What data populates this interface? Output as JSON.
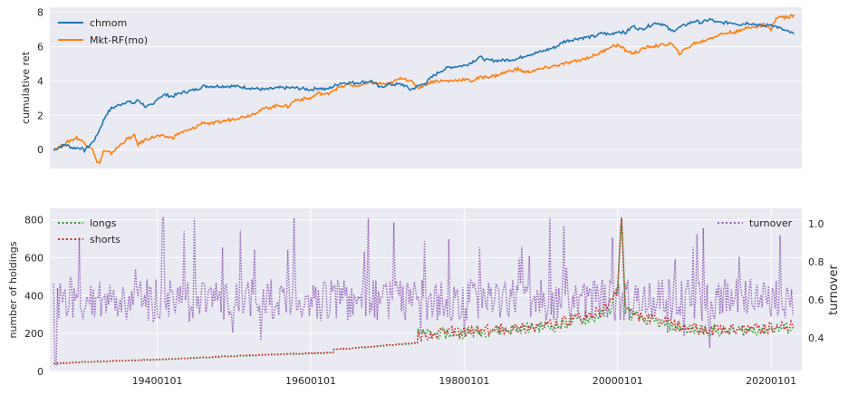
{
  "chart_data": [
    {
      "type": "line",
      "title": "",
      "xlabel": "",
      "ylabel": "cumulative ret",
      "xlim": [
        1926,
        2024
      ],
      "ylim": [
        -1.1,
        8.3
      ],
      "yticks": [
        0,
        2,
        4,
        6,
        8
      ],
      "xticks": [],
      "grid": true,
      "legend": "top-left",
      "series": [
        {
          "name": "chmom",
          "color": "#1f77b4",
          "points": [
            [
              1926.5,
              0.0
            ],
            [
              1928,
              0.3
            ],
            [
              1929,
              0.1
            ],
            [
              1930,
              0.1
            ],
            [
              1930.5,
              -0.05
            ],
            [
              1931.5,
              0.4
            ],
            [
              1932,
              0.7
            ],
            [
              1932.5,
              1.2
            ],
            [
              1933.3,
              2.0
            ],
            [
              1934,
              2.4
            ],
            [
              1935,
              2.6
            ],
            [
              1936,
              2.8
            ],
            [
              1937,
              2.7
            ],
            [
              1937.5,
              2.9
            ],
            [
              1938.5,
              2.5
            ],
            [
              1939.5,
              2.6
            ],
            [
              1940,
              3.0
            ],
            [
              1941,
              3.2
            ],
            [
              1942,
              3.1
            ],
            [
              1943,
              3.3
            ],
            [
              1944,
              3.4
            ],
            [
              1945,
              3.5
            ],
            [
              1946,
              3.7
            ],
            [
              1948,
              3.7
            ],
            [
              1950,
              3.7
            ],
            [
              1952,
              3.6
            ],
            [
              1954,
              3.5
            ],
            [
              1956,
              3.6
            ],
            [
              1958,
              3.6
            ],
            [
              1960,
              3.5
            ],
            [
              1961,
              3.6
            ],
            [
              1962,
              3.5
            ],
            [
              1963,
              3.7
            ],
            [
              1964,
              3.9
            ],
            [
              1966,
              3.9
            ],
            [
              1968,
              4.0
            ],
            [
              1969,
              3.6
            ],
            [
              1970,
              3.8
            ],
            [
              1972,
              3.8
            ],
            [
              1973,
              3.5
            ],
            [
              1974,
              3.7
            ],
            [
              1975,
              3.9
            ],
            [
              1976,
              4.3
            ],
            [
              1977,
              4.6
            ],
            [
              1978,
              4.8
            ],
            [
              1980,
              4.9
            ],
            [
              1981,
              5.1
            ],
            [
              1982,
              5.4
            ],
            [
              1983,
              5.2
            ],
            [
              1985,
              5.2
            ],
            [
              1987,
              5.3
            ],
            [
              1988,
              5.5
            ],
            [
              1990,
              5.7
            ],
            [
              1992,
              6.0
            ],
            [
              1993,
              6.3
            ],
            [
              1995,
              6.5
            ],
            [
              1997,
              6.6
            ],
            [
              1998,
              6.8
            ],
            [
              1999,
              6.7
            ],
            [
              2000,
              6.9
            ],
            [
              2001,
              6.8
            ],
            [
              2002,
              7.2
            ],
            [
              2003,
              7.0
            ],
            [
              2004,
              7.2
            ],
            [
              2005,
              7.4
            ],
            [
              2006,
              7.3
            ],
            [
              2007,
              6.9
            ],
            [
              2008,
              7.1
            ],
            [
              2009,
              7.3
            ],
            [
              2010,
              7.5
            ],
            [
              2011,
              7.4
            ],
            [
              2012,
              7.6
            ],
            [
              2013,
              7.4
            ],
            [
              2015,
              7.4
            ],
            [
              2016,
              7.3
            ],
            [
              2017,
              7.4
            ],
            [
              2018,
              7.3
            ],
            [
              2019,
              7.2
            ],
            [
              2020,
              7.3
            ],
            [
              2021,
              7.1
            ],
            [
              2022,
              6.9
            ],
            [
              2023,
              6.75
            ]
          ]
        },
        {
          "name": "Mkt-RF(mo)",
          "color": "#ff7f0e",
          "points": [
            [
              1926.5,
              0.0
            ],
            [
              1927.5,
              0.2
            ],
            [
              1928.5,
              0.5
            ],
            [
              1929.5,
              0.7
            ],
            [
              1930.5,
              0.4
            ],
            [
              1931.5,
              0.1
            ],
            [
              1932,
              -0.6
            ],
            [
              1932.5,
              -0.8
            ],
            [
              1933,
              -0.1
            ],
            [
              1934,
              -0.2
            ],
            [
              1935,
              0.2
            ],
            [
              1936,
              0.6
            ],
            [
              1937,
              0.8
            ],
            [
              1937.5,
              0.3
            ],
            [
              1938.5,
              0.6
            ],
            [
              1940,
              0.8
            ],
            [
              1942,
              0.7
            ],
            [
              1943,
              1.0
            ],
            [
              1944,
              1.1
            ],
            [
              1945,
              1.3
            ],
            [
              1946,
              1.6
            ],
            [
              1947,
              1.5
            ],
            [
              1948,
              1.6
            ],
            [
              1950,
              1.8
            ],
            [
              1952,
              2.0
            ],
            [
              1954,
              2.4
            ],
            [
              1956,
              2.6
            ],
            [
              1957,
              2.5
            ],
            [
              1958,
              2.9
            ],
            [
              1960,
              3.0
            ],
            [
              1961,
              3.3
            ],
            [
              1962,
              3.2
            ],
            [
              1963,
              3.5
            ],
            [
              1965,
              3.8
            ],
            [
              1966,
              3.7
            ],
            [
              1968,
              3.9
            ],
            [
              1970,
              3.8
            ],
            [
              1971,
              4.0
            ],
            [
              1972,
              4.2
            ],
            [
              1973,
              4.0
            ],
            [
              1974,
              3.6
            ],
            [
              1975,
              3.8
            ],
            [
              1976,
              4.0
            ],
            [
              1978,
              4.0
            ],
            [
              1980,
              4.1
            ],
            [
              1981,
              4.0
            ],
            [
              1982,
              4.2
            ],
            [
              1984,
              4.3
            ],
            [
              1986,
              4.6
            ],
            [
              1987,
              4.7
            ],
            [
              1988,
              4.5
            ],
            [
              1990,
              4.7
            ],
            [
              1992,
              4.9
            ],
            [
              1993,
              5.0
            ],
            [
              1995,
              5.2
            ],
            [
              1997,
              5.5
            ],
            [
              1998,
              5.7
            ],
            [
              1999,
              6.0
            ],
            [
              2000,
              6.1
            ],
            [
              2001,
              5.8
            ],
            [
              2002,
              5.6
            ],
            [
              2003,
              5.8
            ],
            [
              2004,
              6.0
            ],
            [
              2006,
              6.1
            ],
            [
              2007,
              6.2
            ],
            [
              2008,
              5.6
            ],
            [
              2009,
              5.9
            ],
            [
              2010,
              6.2
            ],
            [
              2011,
              6.3
            ],
            [
              2012,
              6.5
            ],
            [
              2014,
              6.8
            ],
            [
              2016,
              6.9
            ],
            [
              2017,
              7.2
            ],
            [
              2018,
              7.1
            ],
            [
              2019,
              7.3
            ],
            [
              2020,
              7.0
            ],
            [
              2020.5,
              7.5
            ],
            [
              2021,
              7.8
            ],
            [
              2022,
              7.7
            ],
            [
              2023,
              7.85
            ]
          ]
        }
      ]
    },
    {
      "type": "line",
      "title": "",
      "xlabel": "",
      "ylabel": "number of holdings",
      "ylabel_right": "turnover",
      "xlim": [
        1926,
        2024
      ],
      "ylim": [
        0,
        860
      ],
      "ylim_right": [
        0.225,
        1.08
      ],
      "yticks": [
        0,
        200,
        400,
        600,
        800
      ],
      "yticks_right": [
        0.4,
        0.6,
        0.8,
        1.0
      ],
      "xticks": [
        "19400101",
        "19600101",
        "19800101",
        "20000101",
        "20200101"
      ],
      "xtick_values": [
        1940,
        1960,
        1980,
        2000,
        2020
      ],
      "grid": true,
      "legend": "top-left",
      "legend_right": "top-right",
      "series": [
        {
          "name": "longs",
          "color": "#2ca02c",
          "style": "dotted",
          "axis": "left",
          "points": [
            [
              1926.5,
              40
            ],
            [
              1930,
              48
            ],
            [
              1935,
              55
            ],
            [
              1940,
              62
            ],
            [
              1945,
              70
            ],
            [
              1950,
              80
            ],
            [
              1955,
              88
            ],
            [
              1960,
              95
            ],
            [
              1962.9,
              100
            ],
            [
              1963,
              115
            ],
            [
              1965,
              120
            ],
            [
              1968,
              130
            ],
            [
              1971,
              140
            ],
            [
              1973.9,
              150
            ],
            [
              1974,
              195
            ],
            [
              1978,
              200
            ],
            [
              1982,
              210
            ],
            [
              1985,
              220
            ],
            [
              1988,
              230
            ],
            [
              1990,
              235
            ],
            [
              1992,
              240
            ],
            [
              1994,
              260
            ],
            [
              1996,
              280
            ],
            [
              1998,
              300
            ],
            [
              1999,
              330
            ],
            [
              2000,
              430
            ],
            [
              2000.5,
              830
            ],
            [
              2001,
              330
            ],
            [
              2002,
              290
            ],
            [
              2004,
              270
            ],
            [
              2006,
              250
            ],
            [
              2008,
              230
            ],
            [
              2010,
              220
            ],
            [
              2012,
              215
            ],
            [
              2014,
              210
            ],
            [
              2016,
              215
            ],
            [
              2018,
              220
            ],
            [
              2020,
              225
            ],
            [
              2023,
              230
            ]
          ]
        },
        {
          "name": "shorts",
          "color": "#d62728",
          "style": "dotted",
          "axis": "left",
          "points": [
            [
              1926.5,
              42
            ],
            [
              1930,
              50
            ],
            [
              1935,
              57
            ],
            [
              1940,
              63
            ],
            [
              1945,
              72
            ],
            [
              1950,
              82
            ],
            [
              1955,
              90
            ],
            [
              1960,
              96
            ],
            [
              1962.9,
              101
            ],
            [
              1963,
              118
            ],
            [
              1965,
              122
            ],
            [
              1968,
              132
            ],
            [
              1971,
              142
            ],
            [
              1973.9,
              152
            ],
            [
              1974,
              192
            ],
            [
              1978,
              205
            ],
            [
              1982,
              215
            ],
            [
              1985,
              225
            ],
            [
              1988,
              235
            ],
            [
              1990,
              240
            ],
            [
              1992,
              250
            ],
            [
              1994,
              270
            ],
            [
              1996,
              290
            ],
            [
              1998,
              320
            ],
            [
              1999,
              350
            ],
            [
              2000,
              450
            ],
            [
              2000.5,
              800
            ],
            [
              2001,
              340
            ],
            [
              2002,
              300
            ],
            [
              2004,
              280
            ],
            [
              2006,
              260
            ],
            [
              2008,
              240
            ],
            [
              2010,
              225
            ],
            [
              2012,
              220
            ],
            [
              2014,
              215
            ],
            [
              2016,
              220
            ],
            [
              2018,
              225
            ],
            [
              2020,
              230
            ],
            [
              2023,
              235
            ]
          ]
        },
        {
          "name": "turnover",
          "color": "#9467bd",
          "style": "dotted",
          "axis": "right",
          "mean": 0.6,
          "amplitude": 0.11,
          "start": 1926.5,
          "end": 2023
        }
      ]
    }
  ]
}
